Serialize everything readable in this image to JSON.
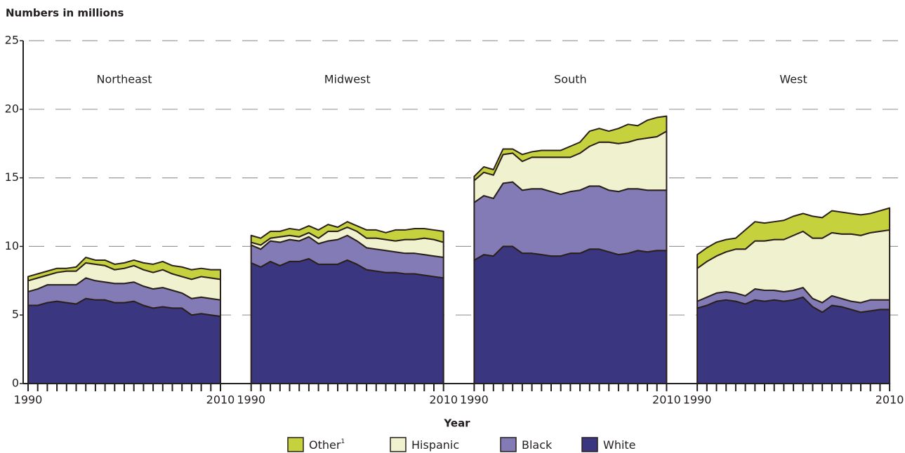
{
  "chart_data": {
    "type": "area",
    "stacked": true,
    "ylabel": "Numbers in millions",
    "xlabel": "Year",
    "x": [
      1990,
      1991,
      1992,
      1993,
      1994,
      1995,
      1996,
      1997,
      1998,
      1999,
      2000,
      2001,
      2002,
      2003,
      2004,
      2005,
      2006,
      2007,
      2008,
      2009,
      2010
    ],
    "xticks": [
      1990,
      2010
    ],
    "ylim": [
      0,
      25
    ],
    "yticks": [
      0,
      5,
      10,
      15,
      20,
      25
    ],
    "grid": true,
    "series": [
      {
        "name": "Other",
        "footnote_mark": "1",
        "color": "#c5d23e"
      },
      {
        "name": "Hispanic",
        "color": "#eff1cf"
      },
      {
        "name": "Black",
        "color": "#827bb5"
      },
      {
        "name": "White",
        "color": "#3b3680"
      }
    ],
    "panels": [
      {
        "title": "Northeast",
        "values": [
          [
            0.3,
            0.3,
            0.3,
            0.3,
            0.2,
            0.3,
            0.4,
            0.3,
            0.4,
            0.4,
            0.4,
            0.4,
            0.5,
            0.6,
            0.6,
            0.6,
            0.7,
            0.7,
            0.6,
            0.6,
            0.7
          ],
          [
            0.8,
            0.8,
            0.7,
            0.9,
            1.0,
            1.0,
            1.1,
            1.2,
            1.2,
            1.0,
            1.1,
            1.2,
            1.2,
            1.2,
            1.3,
            1.2,
            1.2,
            1.4,
            1.5,
            1.5,
            1.5
          ],
          [
            1.0,
            1.2,
            1.3,
            1.2,
            1.3,
            1.4,
            1.5,
            1.4,
            1.3,
            1.4,
            1.4,
            1.4,
            1.4,
            1.4,
            1.4,
            1.3,
            1.1,
            1.2,
            1.2,
            1.2,
            1.2
          ],
          [
            5.7,
            5.7,
            5.9,
            6.0,
            5.9,
            5.8,
            6.2,
            6.1,
            6.1,
            5.9,
            5.9,
            6.0,
            5.7,
            5.5,
            5.6,
            5.5,
            5.5,
            5.0,
            5.1,
            5.0,
            4.9
          ]
        ]
      },
      {
        "title": "Midwest",
        "values": [
          [
            0.5,
            0.5,
            0.5,
            0.4,
            0.5,
            0.5,
            0.5,
            0.6,
            0.5,
            0.3,
            0.4,
            0.4,
            0.6,
            0.6,
            0.5,
            0.8,
            0.7,
            0.8,
            0.7,
            0.7,
            0.8
          ],
          [
            0.2,
            0.3,
            0.2,
            0.4,
            0.3,
            0.3,
            0.3,
            0.4,
            0.7,
            0.6,
            0.6,
            0.7,
            0.7,
            0.8,
            0.8,
            0.8,
            1.0,
            1.0,
            1.2,
            1.2,
            1.1
          ],
          [
            1.3,
            1.3,
            1.5,
            1.7,
            1.6,
            1.5,
            1.6,
            1.5,
            1.7,
            1.8,
            1.8,
            1.7,
            1.6,
            1.6,
            1.6,
            1.5,
            1.5,
            1.5,
            1.5,
            1.5,
            1.5
          ],
          [
            8.8,
            8.5,
            8.9,
            8.6,
            8.9,
            8.9,
            9.1,
            8.7,
            8.7,
            8.7,
            9.0,
            8.7,
            8.3,
            8.2,
            8.1,
            8.1,
            8.0,
            8.0,
            7.9,
            7.8,
            7.7
          ]
        ]
      },
      {
        "title": "South",
        "values": [
          [
            0.3,
            0.4,
            0.4,
            0.4,
            0.3,
            0.5,
            0.4,
            0.5,
            0.5,
            0.5,
            0.8,
            0.8,
            1.1,
            1.0,
            0.8,
            1.1,
            1.3,
            1.0,
            1.3,
            1.4,
            1.1
          ],
          [
            1.6,
            1.7,
            1.7,
            2.1,
            2.1,
            2.1,
            2.3,
            2.3,
            2.5,
            2.7,
            2.5,
            2.7,
            2.9,
            3.2,
            3.5,
            3.5,
            3.4,
            3.6,
            3.8,
            3.9,
            4.3
          ],
          [
            4.2,
            4.3,
            4.2,
            4.6,
            4.7,
            4.6,
            4.7,
            4.8,
            4.7,
            4.5,
            4.5,
            4.6,
            4.6,
            4.6,
            4.5,
            4.6,
            4.7,
            4.5,
            4.5,
            4.4,
            4.4
          ],
          [
            9.0,
            9.4,
            9.3,
            10.0,
            10.0,
            9.5,
            9.5,
            9.4,
            9.3,
            9.3,
            9.5,
            9.5,
            9.8,
            9.8,
            9.6,
            9.4,
            9.5,
            9.7,
            9.6,
            9.7,
            9.7
          ]
        ]
      },
      {
        "title": "West",
        "values": [
          [
            1.0,
            1.0,
            1.0,
            0.9,
            0.8,
            1.4,
            1.4,
            1.3,
            1.3,
            1.4,
            1.4,
            1.3,
            1.6,
            1.5,
            1.6,
            1.6,
            1.5,
            1.5,
            1.4,
            1.5,
            1.6
          ],
          [
            2.4,
            2.6,
            2.7,
            2.9,
            3.2,
            3.4,
            3.5,
            3.6,
            3.7,
            3.8,
            4.0,
            4.1,
            4.4,
            4.7,
            4.6,
            4.7,
            4.9,
            4.9,
            4.9,
            5.0,
            5.1
          ],
          [
            0.5,
            0.6,
            0.6,
            0.6,
            0.6,
            0.6,
            0.8,
            0.8,
            0.7,
            0.7,
            0.7,
            0.7,
            0.6,
            0.7,
            0.7,
            0.6,
            0.6,
            0.7,
            0.8,
            0.7,
            0.7
          ],
          [
            5.5,
            5.7,
            6.0,
            6.1,
            6.0,
            5.8,
            6.1,
            6.0,
            6.1,
            6.0,
            6.1,
            6.3,
            5.6,
            5.2,
            5.7,
            5.6,
            5.4,
            5.2,
            5.3,
            5.4,
            5.4
          ]
        ]
      }
    ]
  }
}
